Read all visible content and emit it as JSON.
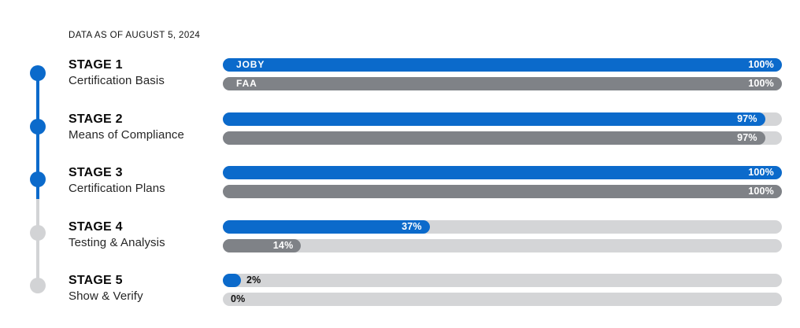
{
  "header": {
    "data_as_of": "DATA AS OF AUGUST 5, 2024"
  },
  "colors": {
    "joby_blue": "#0B6ACB",
    "faa_gray": "#7F8287",
    "track_light_gray": "#D4D5D7",
    "timeline_inactive_gray": "#D2D3D5",
    "label_white": "#FFFFFF",
    "label_dark": "#101010"
  },
  "chart_data": {
    "type": "bar",
    "orientation": "horizontal",
    "title": "DATA AS OF AUGUST 5, 2024",
    "categories": [
      "STAGE 1 — Certification Basis",
      "STAGE 2 — Means of Compliance",
      "STAGE 3 — Certification Plans",
      "STAGE 4 — Testing & Analysis",
      "STAGE 5 — Show & Verify"
    ],
    "series": [
      {
        "name": "JOBY",
        "values": [
          100,
          97,
          100,
          37,
          2
        ],
        "color": "#0B6ACB"
      },
      {
        "name": "FAA",
        "values": [
          100,
          97,
          100,
          14,
          0
        ],
        "color": "#7F8287"
      }
    ],
    "value_labels": [
      [
        "100%",
        "97%",
        "100%",
        "37%",
        "2%"
      ],
      [
        "100%",
        "97%",
        "100%",
        "14%",
        "0%"
      ]
    ],
    "xlim": [
      0,
      100
    ],
    "grid": false,
    "legend_position": "inside-first-bars"
  },
  "stages": [
    {
      "title": "STAGE 1",
      "subtitle": "Certification Basis",
      "active": true,
      "joby": {
        "pct": 100,
        "label": "100%",
        "entity": "JOBY"
      },
      "faa": {
        "pct": 100,
        "label": "100%",
        "entity": "FAA"
      }
    },
    {
      "title": "STAGE 2",
      "subtitle": "Means of Compliance",
      "active": true,
      "joby": {
        "pct": 97,
        "label": "97%"
      },
      "faa": {
        "pct": 97,
        "label": "97%"
      }
    },
    {
      "title": "STAGE 3",
      "subtitle": "Certification Plans",
      "active": true,
      "joby": {
        "pct": 100,
        "label": "100%"
      },
      "faa": {
        "pct": 100,
        "label": "100%"
      }
    },
    {
      "title": "STAGE 4",
      "subtitle": "Testing & Analysis",
      "active": false,
      "joby": {
        "pct": 37,
        "label": "37%"
      },
      "faa": {
        "pct": 14,
        "label": "14%"
      }
    },
    {
      "title": "STAGE 5",
      "subtitle": "Show & Verify",
      "active": false,
      "joby": {
        "pct": 2,
        "label": "2%",
        "label_outside": true
      },
      "faa": {
        "pct": 0,
        "label": "0%",
        "label_outside": true
      }
    }
  ]
}
